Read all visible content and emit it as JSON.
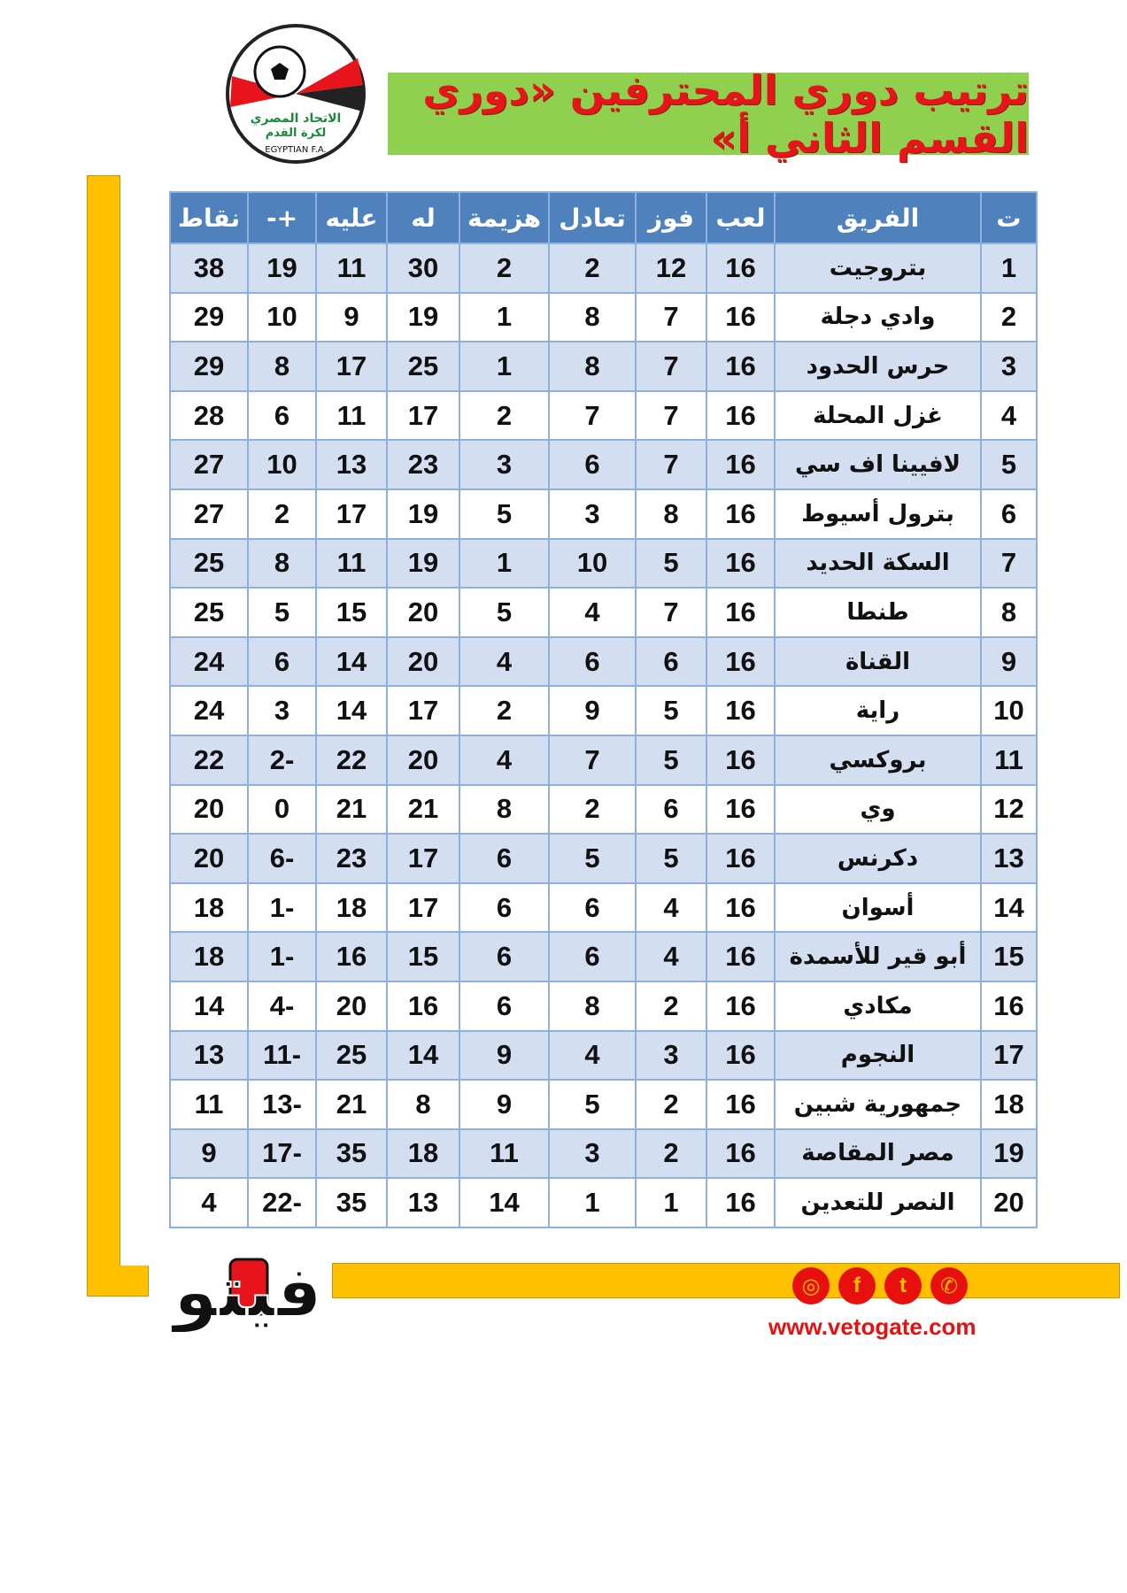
{
  "header": {
    "title": "ترتيب دوري المحترفين «دوري القسم الثاني أ»",
    "logo_text": [
      "الاتحاد المصري لكرة القدم",
      "EGYPTIAN F.A."
    ]
  },
  "table": {
    "columns": [
      "ت",
      "الفريق",
      "لعب",
      "فوز",
      "تعادل",
      "هزيمة",
      "له",
      "عليه",
      "+-",
      "نقاط"
    ],
    "rows": [
      [
        "1",
        "بتروجيت",
        "16",
        "12",
        "2",
        "2",
        "30",
        "11",
        "19",
        "38"
      ],
      [
        "2",
        "وادي دجلة",
        "16",
        "7",
        "8",
        "1",
        "19",
        "9",
        "10",
        "29"
      ],
      [
        "3",
        "حرس الحدود",
        "16",
        "7",
        "8",
        "1",
        "25",
        "17",
        "8",
        "29"
      ],
      [
        "4",
        "غزل المحلة",
        "16",
        "7",
        "7",
        "2",
        "17",
        "11",
        "6",
        "28"
      ],
      [
        "5",
        "لافيينا اف سي",
        "16",
        "7",
        "6",
        "3",
        "23",
        "13",
        "10",
        "27"
      ],
      [
        "6",
        "بترول أسيوط",
        "16",
        "8",
        "3",
        "5",
        "19",
        "17",
        "2",
        "27"
      ],
      [
        "7",
        "السكة الحديد",
        "16",
        "5",
        "10",
        "1",
        "19",
        "11",
        "8",
        "25"
      ],
      [
        "8",
        "طنطا",
        "16",
        "7",
        "4",
        "5",
        "20",
        "15",
        "5",
        "25"
      ],
      [
        "9",
        "القناة",
        "16",
        "6",
        "6",
        "4",
        "20",
        "14",
        "6",
        "24"
      ],
      [
        "10",
        "راية",
        "16",
        "5",
        "9",
        "2",
        "17",
        "14",
        "3",
        "24"
      ],
      [
        "11",
        "بروكسي",
        "16",
        "5",
        "7",
        "4",
        "20",
        "22",
        "-2",
        "22"
      ],
      [
        "12",
        "وي",
        "16",
        "6",
        "2",
        "8",
        "21",
        "21",
        "0",
        "20"
      ],
      [
        "13",
        "دكرنس",
        "16",
        "5",
        "5",
        "6",
        "17",
        "23",
        "-6",
        "20"
      ],
      [
        "14",
        "أسوان",
        "16",
        "4",
        "6",
        "6",
        "17",
        "18",
        "-1",
        "18"
      ],
      [
        "15",
        "أبو قير للأسمدة",
        "16",
        "4",
        "6",
        "6",
        "15",
        "16",
        "-1",
        "18"
      ],
      [
        "16",
        "مكادي",
        "16",
        "2",
        "8",
        "6",
        "16",
        "20",
        "-4",
        "14"
      ],
      [
        "17",
        "النجوم",
        "16",
        "3",
        "4",
        "9",
        "14",
        "25",
        "-11",
        "13"
      ],
      [
        "18",
        "جمهورية شبين",
        "16",
        "2",
        "5",
        "9",
        "8",
        "21",
        "-13",
        "11"
      ],
      [
        "19",
        "مصر المقاصة",
        "16",
        "2",
        "3",
        "11",
        "18",
        "35",
        "-17",
        "9"
      ],
      [
        "20",
        "النصر للتعدين",
        "16",
        "1",
        "1",
        "14",
        "13",
        "35",
        "-22",
        "4"
      ]
    ]
  },
  "footer": {
    "brand": "فيتو",
    "url": "www.vetogate.com",
    "social_icons": [
      "instagram-icon",
      "facebook-icon",
      "twitter-icon",
      "whatsapp-icon"
    ],
    "social_glyphs": [
      "◎",
      "f",
      "t",
      "✆"
    ]
  },
  "colors": {
    "header_bg": "#4f81bd",
    "row_alt": "#d3dff0",
    "banner_bg": "#8fd14f",
    "title": "#e8141b",
    "accent_yellow": "#ffc000",
    "social_red": "#e8100f"
  }
}
